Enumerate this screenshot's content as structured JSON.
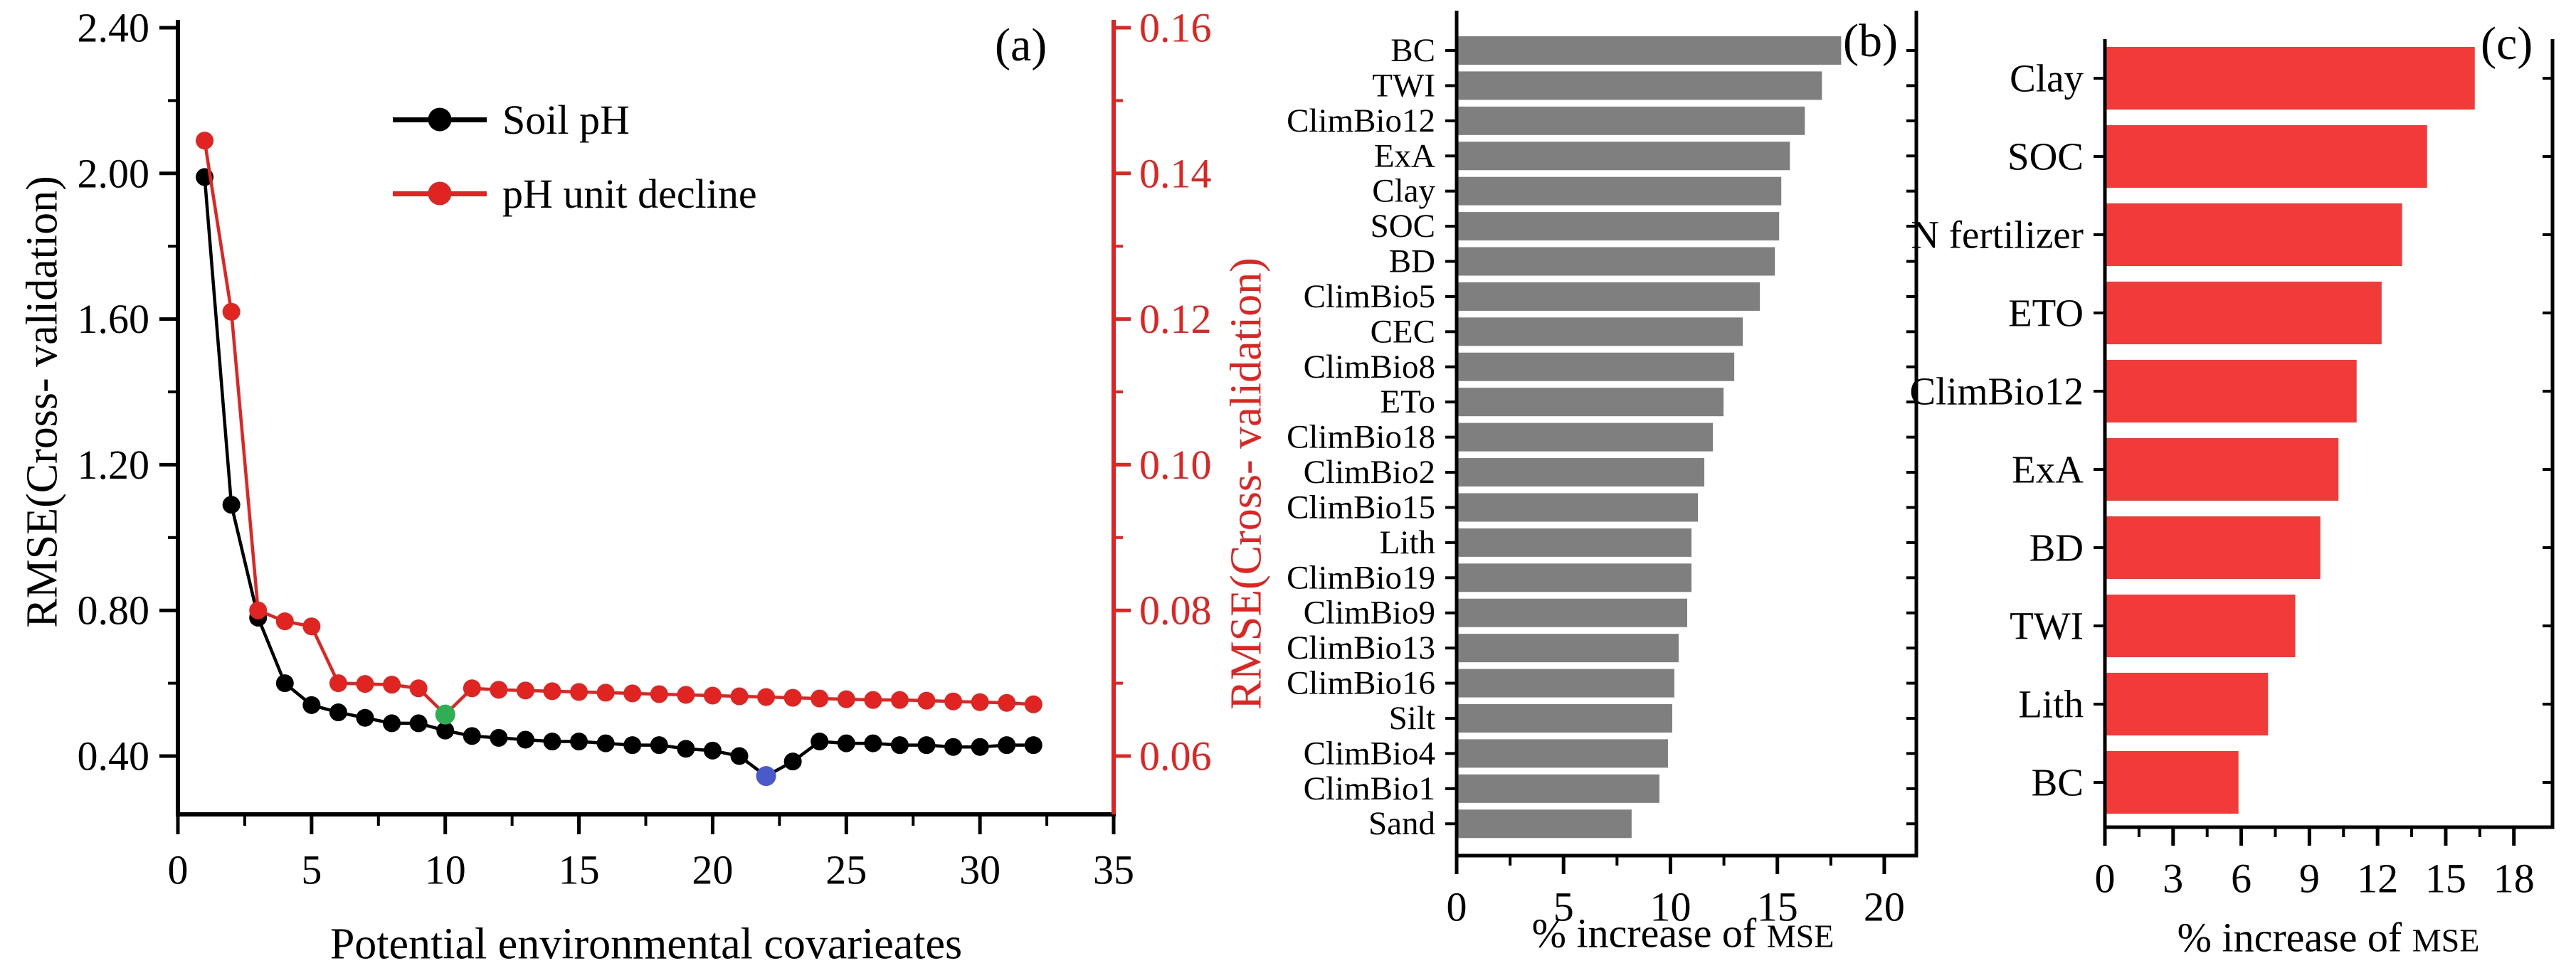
{
  "figure_type": "three-panel scientific figure",
  "colors": {
    "series_black": "#000000",
    "series_red": "#e02421",
    "highlight_green": "#2fae54",
    "highlight_blue": "#4a5acb",
    "bars_gray": "#7f7f7f",
    "bars_red": "#f23b38"
  },
  "chart_data": [
    {
      "id": "a",
      "type": "line",
      "panel_label": "(a)",
      "xlabel": "Potential environmental covarieates",
      "ylabel_left": "RMSE(Cross- validation)",
      "ylabel_right": "RMSE(Cross- validation)",
      "xlim": [
        0,
        35
      ],
      "x_major_ticks": [
        0,
        5,
        10,
        15,
        20,
        25,
        30,
        35
      ],
      "ylim_left": [
        0.4,
        2.4
      ],
      "y_major_tick_labels_left": [
        "0.40",
        "0.80",
        "1.20",
        "1.60",
        "2.00",
        "2.40"
      ],
      "ylim_right": [
        0.06,
        0.16
      ],
      "y_major_tick_labels_right": [
        "0.06",
        "0.08",
        "0.10",
        "0.12",
        "0.14",
        "0.16"
      ],
      "grid": false,
      "legend_position": "inside-top-center",
      "legend": [
        {
          "label": "Soil pH",
          "color": "#000000"
        },
        {
          "label": "pH unit decline",
          "color": "#e02421"
        }
      ],
      "series": [
        {
          "name": "Soil pH",
          "axis": "left",
          "color": "#000000",
          "x": [
            1,
            2,
            3,
            4,
            5,
            6,
            7,
            8,
            9,
            10,
            11,
            12,
            13,
            14,
            15,
            16,
            17,
            18,
            19,
            20,
            21,
            22,
            23,
            24,
            25,
            26,
            27,
            28,
            29,
            30,
            31,
            32
          ],
          "y": [
            1.99,
            1.09,
            0.78,
            0.6,
            0.54,
            0.52,
            0.505,
            0.49,
            0.49,
            0.47,
            0.455,
            0.45,
            0.445,
            0.44,
            0.44,
            0.435,
            0.43,
            0.43,
            0.42,
            0.415,
            0.4,
            0.345,
            0.385,
            0.44,
            0.435,
            0.435,
            0.43,
            0.43,
            0.425,
            0.425,
            0.43,
            0.43
          ],
          "special_points": [
            {
              "x": 22,
              "color": "#4a5acb",
              "note": "blue highlighted point"
            }
          ]
        },
        {
          "name": "pH unit decline",
          "axis": "right",
          "color": "#e02421",
          "x": [
            1,
            2,
            3,
            4,
            5,
            6,
            7,
            8,
            9,
            10,
            11,
            12,
            13,
            14,
            15,
            16,
            17,
            18,
            19,
            20,
            21,
            22,
            23,
            24,
            25,
            26,
            27,
            28,
            29,
            30,
            31,
            32
          ],
          "y": [
            0.1445,
            0.121,
            0.08,
            0.0785,
            0.0778,
            0.07,
            0.0699,
            0.0698,
            0.0693,
            0.0657,
            0.0693,
            0.0691,
            0.069,
            0.0689,
            0.0688,
            0.0687,
            0.0686,
            0.0685,
            0.0684,
            0.0683,
            0.0682,
            0.0681,
            0.068,
            0.0679,
            0.0678,
            0.0677,
            0.0677,
            0.0676,
            0.0675,
            0.0674,
            0.0673,
            0.0671
          ],
          "special_points": [
            {
              "x": 10,
              "color": "#2fae54",
              "note": "green highlighted point"
            }
          ]
        }
      ]
    },
    {
      "id": "b",
      "type": "bar",
      "orientation": "horizontal",
      "panel_label": "(b)",
      "xlabel": "% increase of MSE",
      "xlabel_main": "% increase of",
      "xlabel_small": "MSE",
      "bar_color": "#7f7f7f",
      "xlim": [
        0,
        21.5
      ],
      "x_major_ticks": [
        0,
        5,
        10,
        15,
        20
      ],
      "categories": [
        "BC",
        "TWI",
        "ClimBio12",
        "ExA",
        "Clay",
        "SOC",
        "BD",
        "ClimBio5",
        "CEC",
        "ClimBio8",
        "ETo",
        "ClimBio18",
        "ClimBio2",
        "ClimBio15",
        "Lith",
        "ClimBio19",
        "ClimBio9",
        "ClimBio13",
        "ClimBio16",
        "Silt",
        "ClimBio4",
        "ClimBio1",
        "Sand"
      ],
      "values": [
        17.9,
        17.0,
        16.2,
        15.5,
        15.1,
        15.0,
        14.8,
        14.1,
        13.3,
        12.9,
        12.4,
        11.9,
        11.5,
        11.2,
        10.9,
        10.9,
        10.7,
        10.3,
        10.1,
        10.0,
        9.8,
        9.4,
        8.1
      ]
    },
    {
      "id": "c",
      "type": "bar",
      "orientation": "horizontal",
      "panel_label": "(c)",
      "xlabel": "% increase of MSE",
      "xlabel_main": "% increase of",
      "xlabel_small": "MSE",
      "bar_color": "#f23b38",
      "xlim": [
        0,
        19.7
      ],
      "x_major_ticks": [
        0,
        3,
        6,
        9,
        12,
        15,
        18
      ],
      "categories": [
        "Clay",
        "SOC",
        "N fertilizer",
        "ETO",
        "ClimBio12",
        "ExA",
        "BD",
        "TWI",
        "Lith",
        "BC"
      ],
      "values": [
        16.2,
        14.1,
        13.0,
        12.1,
        11.0,
        10.2,
        9.4,
        8.3,
        7.1,
        5.8
      ]
    }
  ]
}
